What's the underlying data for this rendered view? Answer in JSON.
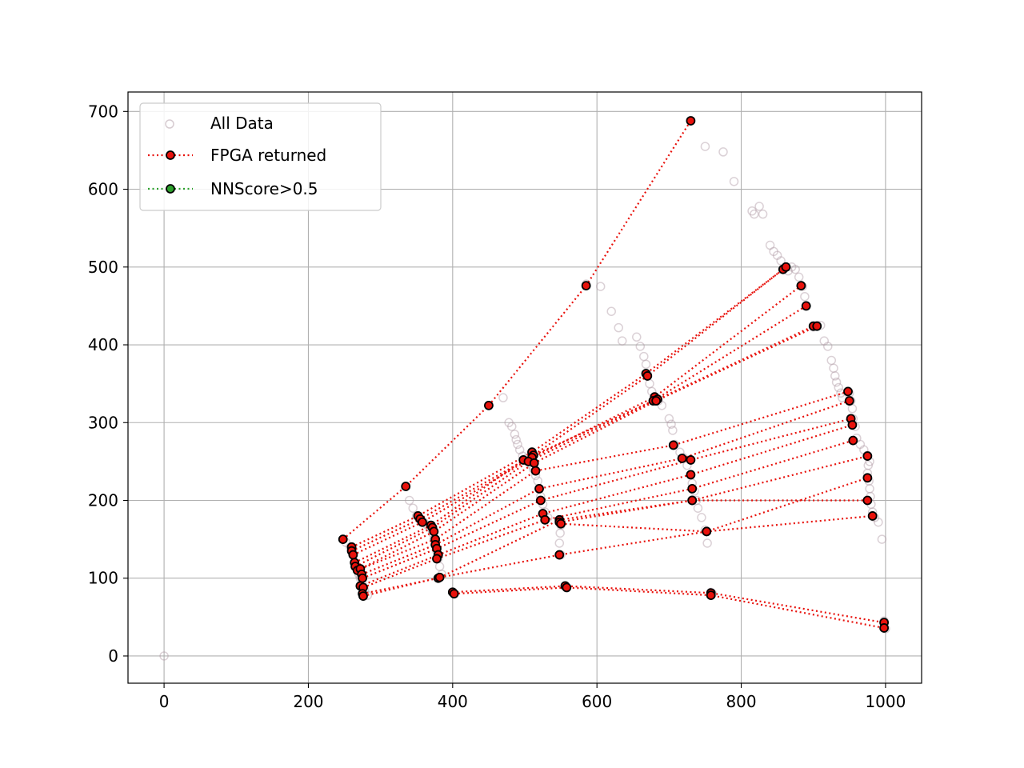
{
  "chart_data": {
    "type": "scatter",
    "title": "",
    "xlabel": "",
    "ylabel": "",
    "xlim": [
      -50,
      1050
    ],
    "ylim": [
      -35,
      725
    ],
    "xticks": [
      0,
      200,
      400,
      600,
      800,
      1000
    ],
    "yticks": [
      0,
      100,
      200,
      300,
      400,
      500,
      600,
      700
    ],
    "grid": true,
    "legend_position": "upper-left",
    "legend": [
      {
        "label": "All Data",
        "marker": "circle-hollow",
        "color": "#b09aa4"
      },
      {
        "label": "FPGA returned",
        "marker": "circle-filled",
        "line": "dotted",
        "color": "#e8120c",
        "edge": "#000000"
      },
      {
        "label": "NNScore>0.5",
        "marker": "circle-filled",
        "line": "dotted",
        "color": "#2ca02c",
        "edge": "#000000"
      }
    ],
    "all_data": [
      [
        0,
        0
      ],
      [
        248,
        150
      ],
      [
        252,
        146
      ],
      [
        258,
        140
      ],
      [
        262,
        130
      ],
      [
        265,
        120
      ],
      [
        268,
        112
      ],
      [
        270,
        105
      ],
      [
        272,
        100
      ],
      [
        275,
        92
      ],
      [
        278,
        85
      ],
      [
        282,
        78
      ],
      [
        340,
        200
      ],
      [
        345,
        190
      ],
      [
        350,
        180
      ],
      [
        355,
        175
      ],
      [
        360,
        172
      ],
      [
        365,
        168
      ],
      [
        370,
        164
      ],
      [
        372,
        158
      ],
      [
        374,
        150
      ],
      [
        376,
        142
      ],
      [
        378,
        135
      ],
      [
        380,
        125
      ],
      [
        382,
        115
      ],
      [
        385,
        105
      ],
      [
        450,
        322
      ],
      [
        470,
        332
      ],
      [
        478,
        300
      ],
      [
        482,
        295
      ],
      [
        486,
        285
      ],
      [
        488,
        278
      ],
      [
        490,
        272
      ],
      [
        493,
        265
      ],
      [
        497,
        257
      ],
      [
        502,
        254
      ],
      [
        505,
        250
      ],
      [
        510,
        245
      ],
      [
        512,
        240
      ],
      [
        515,
        232
      ],
      [
        518,
        225
      ],
      [
        520,
        215
      ],
      [
        522,
        205
      ],
      [
        525,
        195
      ],
      [
        528,
        185
      ],
      [
        532,
        178
      ],
      [
        548,
        175
      ],
      [
        550,
        168
      ],
      [
        549,
        158
      ],
      [
        548,
        145
      ],
      [
        550,
        130
      ],
      [
        585,
        478
      ],
      [
        605,
        475
      ],
      [
        620,
        443
      ],
      [
        630,
        422
      ],
      [
        635,
        405
      ],
      [
        655,
        410
      ],
      [
        660,
        398
      ],
      [
        665,
        385
      ],
      [
        668,
        375
      ],
      [
        670,
        362
      ],
      [
        673,
        350
      ],
      [
        676,
        340
      ],
      [
        680,
        333
      ],
      [
        685,
        328
      ],
      [
        690,
        322
      ],
      [
        700,
        305
      ],
      [
        703,
        298
      ],
      [
        705,
        290
      ],
      [
        708,
        272
      ],
      [
        715,
        262
      ],
      [
        720,
        255
      ],
      [
        725,
        245
      ],
      [
        730,
        233
      ],
      [
        732,
        222
      ],
      [
        735,
        212
      ],
      [
        738,
        200
      ],
      [
        740,
        190
      ],
      [
        745,
        178
      ],
      [
        750,
        162
      ],
      [
        753,
        145
      ],
      [
        758,
        82
      ],
      [
        760,
        80
      ],
      [
        750,
        655
      ],
      [
        775,
        648
      ],
      [
        790,
        610
      ],
      [
        815,
        572
      ],
      [
        818,
        568
      ],
      [
        825,
        578
      ],
      [
        830,
        568
      ],
      [
        840,
        528
      ],
      [
        845,
        520
      ],
      [
        850,
        515
      ],
      [
        855,
        508
      ],
      [
        860,
        498
      ],
      [
        865,
        495
      ],
      [
        870,
        500
      ],
      [
        875,
        497
      ],
      [
        880,
        487
      ],
      [
        885,
        475
      ],
      [
        888,
        462
      ],
      [
        890,
        450
      ],
      [
        900,
        423
      ],
      [
        905,
        425
      ],
      [
        910,
        425
      ],
      [
        915,
        405
      ],
      [
        920,
        398
      ],
      [
        925,
        380
      ],
      [
        928,
        370
      ],
      [
        930,
        360
      ],
      [
        932,
        352
      ],
      [
        935,
        345
      ],
      [
        938,
        338
      ],
      [
        940,
        332
      ],
      [
        950,
        338
      ],
      [
        952,
        328
      ],
      [
        954,
        318
      ],
      [
        955,
        305
      ],
      [
        958,
        295
      ],
      [
        960,
        280
      ],
      [
        965,
        272
      ],
      [
        970,
        265
      ],
      [
        975,
        258
      ],
      [
        978,
        250
      ],
      [
        976,
        245
      ],
      [
        975,
        235
      ],
      [
        977,
        225
      ],
      [
        978,
        215
      ],
      [
        979,
        205
      ],
      [
        980,
        195
      ],
      [
        982,
        185
      ],
      [
        985,
        178
      ],
      [
        990,
        172
      ],
      [
        995,
        150
      ],
      [
        998,
        45
      ],
      [
        1000,
        35
      ]
    ],
    "fpga_tracks": [
      [
        [
          248,
          150
        ],
        [
          335,
          218
        ],
        [
          450,
          322
        ],
        [
          585,
          476
        ],
        [
          730,
          688
        ]
      ],
      [
        [
          260,
          140
        ],
        [
          352,
          180
        ],
        [
          510,
          262
        ],
        [
          668,
          363
        ],
        [
          858,
          497
        ]
      ],
      [
        [
          260,
          135
        ],
        [
          355,
          176
        ],
        [
          512,
          258
        ],
        [
          670,
          360
        ],
        [
          862,
          500
        ]
      ],
      [
        [
          262,
          130
        ],
        [
          358,
          172
        ],
        [
          510,
          255
        ],
        [
          680,
          333
        ],
        [
          883,
          476
        ]
      ],
      [
        [
          264,
          120
        ],
        [
          370,
          168
        ],
        [
          498,
          252
        ],
        [
          678,
          328
        ],
        [
          890,
          450
        ]
      ],
      [
        [
          265,
          115
        ],
        [
          372,
          165
        ],
        [
          505,
          250
        ],
        [
          684,
          330
        ],
        [
          900,
          424
        ]
      ],
      [
        [
          268,
          110
        ],
        [
          374,
          160
        ],
        [
          513,
          248
        ],
        [
          682,
          328
        ],
        [
          905,
          424
        ]
      ],
      [
        [
          272,
          112
        ],
        [
          376,
          150
        ],
        [
          515,
          238
        ],
        [
          706,
          271
        ],
        [
          948,
          340
        ]
      ],
      [
        [
          274,
          105
        ],
        [
          376,
          143
        ],
        [
          520,
          215
        ],
        [
          718,
          254
        ],
        [
          950,
          328
        ]
      ],
      [
        [
          275,
          100
        ],
        [
          378,
          138
        ],
        [
          522,
          200
        ],
        [
          730,
          252
        ],
        [
          952,
          305
        ]
      ],
      [
        [
          272,
          90
        ],
        [
          380,
          130
        ],
        [
          525,
          183
        ],
        [
          730,
          233
        ],
        [
          954,
          297
        ]
      ],
      [
        [
          276,
          88
        ],
        [
          378,
          125
        ],
        [
          528,
          175
        ],
        [
          732,
          215
        ],
        [
          955,
          277
        ]
      ],
      [
        [
          275,
          80
        ],
        [
          380,
          100
        ],
        [
          548,
          175
        ],
        [
          732,
          200
        ],
        [
          975,
          257
        ]
      ],
      [
        [
          276,
          77
        ],
        [
          382,
          101
        ],
        [
          548,
          130
        ],
        [
          752,
          160
        ],
        [
          975,
          229
        ]
      ],
      [
        [
          400,
          82
        ],
        [
          556,
          90
        ],
        [
          758,
          81
        ],
        [
          998,
          43
        ]
      ],
      [
        [
          402,
          80
        ],
        [
          558,
          88
        ],
        [
          758,
          78
        ],
        [
          998,
          36
        ]
      ],
      [
        [
          548,
          172
        ],
        [
          732,
          200
        ],
        [
          975,
          200
        ]
      ],
      [
        [
          550,
          170
        ],
        [
          752,
          160
        ],
        [
          982,
          180
        ]
      ]
    ],
    "nnscore_tracks": []
  }
}
